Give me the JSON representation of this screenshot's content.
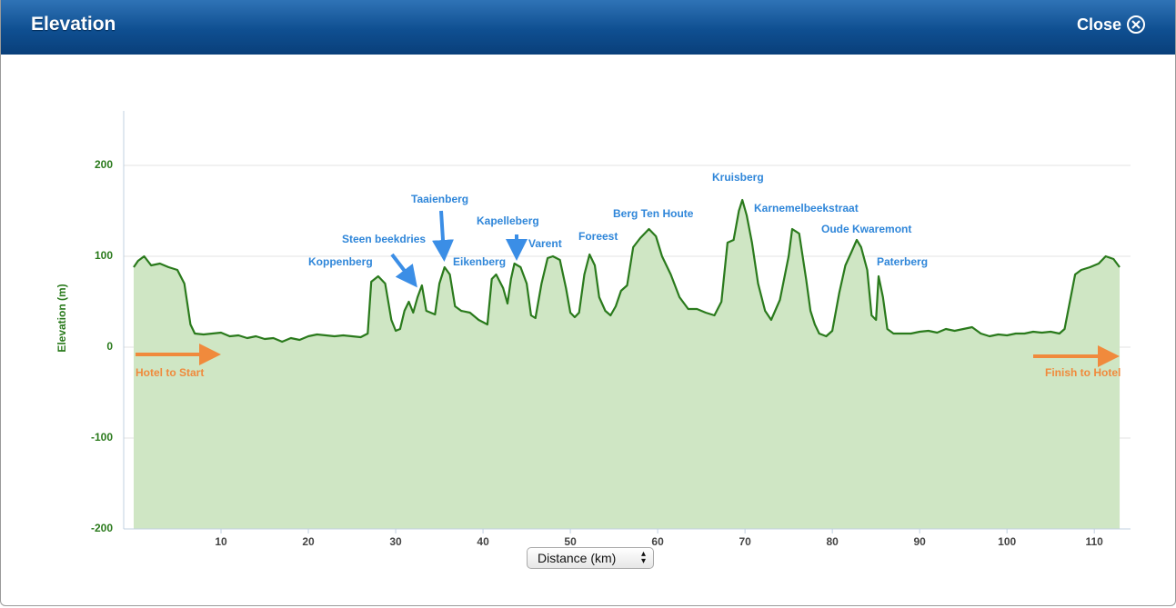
{
  "header": {
    "title": "Elevation",
    "close": "Close"
  },
  "chart_data": {
    "type": "area",
    "ylabel": "Elevation (m)",
    "xlabel": "Distance (km)",
    "color": "#2a7a1c",
    "fill": "#cfe6c4",
    "grid": true,
    "xlim": [
      0,
      113
    ],
    "ylim": [
      -200,
      260
    ],
    "xticks": [
      10,
      20,
      30,
      40,
      50,
      60,
      70,
      80,
      90,
      100,
      110
    ],
    "yticks": [
      -200,
      -100,
      0,
      100,
      200
    ],
    "x": [
      0,
      0.5,
      1.2,
      2,
      3,
      4,
      5,
      5.8,
      6.5,
      7,
      8,
      9,
      10,
      11,
      12,
      13,
      14,
      15,
      16,
      17,
      18,
      19,
      20,
      21,
      22,
      23,
      24,
      25,
      26,
      26.8,
      27.2,
      28,
      28.8,
      29.5,
      30,
      30.5,
      31,
      31.5,
      32,
      32.5,
      33,
      33.5,
      34,
      34.5,
      35,
      35.6,
      36.2,
      36.8,
      37.5,
      38.5,
      39.5,
      40.5,
      41,
      41.5,
      42.3,
      42.8,
      43.2,
      43.6,
      44.3,
      45,
      45.5,
      46,
      46.7,
      47.4,
      48,
      48.8,
      49.5,
      50,
      50.5,
      51,
      51.6,
      52.2,
      52.8,
      53.3,
      54,
      54.6,
      55.2,
      55.8,
      56.5,
      57.2,
      58,
      59,
      59.8,
      60.5,
      61.5,
      62.5,
      63.5,
      64.5,
      65.5,
      66.5,
      67.3,
      68,
      68.7,
      69.3,
      69.7,
      70.2,
      70.8,
      71.5,
      72.3,
      73,
      74,
      75,
      75.4,
      76.2,
      77,
      77.5,
      78,
      78.5,
      79.3,
      80,
      80.8,
      81.5,
      82.2,
      82.8,
      83.3,
      84,
      84.5,
      85,
      85.3,
      85.8,
      86.3,
      87,
      88,
      89,
      90,
      91,
      92,
      93,
      94,
      95,
      96,
      97,
      98,
      99,
      100,
      101,
      102,
      103,
      104,
      105,
      106,
      106.6,
      107.2,
      107.8,
      108.5,
      109.5,
      110.5,
      111.3,
      112.2,
      112.9
    ],
    "values": [
      88,
      95,
      100,
      90,
      92,
      88,
      85,
      70,
      25,
      15,
      14,
      15,
      16,
      12,
      13,
      10,
      12,
      9,
      10,
      6,
      10,
      8,
      12,
      14,
      13,
      12,
      13,
      12,
      11,
      15,
      72,
      78,
      70,
      30,
      18,
      20,
      40,
      50,
      38,
      55,
      68,
      40,
      38,
      36,
      70,
      88,
      80,
      45,
      40,
      38,
      30,
      25,
      75,
      80,
      65,
      48,
      75,
      92,
      88,
      70,
      35,
      32,
      70,
      98,
      100,
      96,
      65,
      38,
      33,
      38,
      80,
      102,
      90,
      55,
      40,
      35,
      45,
      62,
      68,
      110,
      120,
      130,
      122,
      100,
      80,
      55,
      42,
      42,
      38,
      35,
      50,
      115,
      118,
      150,
      162,
      145,
      115,
      70,
      40,
      30,
      52,
      100,
      130,
      125,
      75,
      40,
      25,
      15,
      12,
      18,
      60,
      90,
      105,
      118,
      110,
      85,
      35,
      30,
      78,
      55,
      20,
      15,
      15,
      15,
      17,
      18,
      16,
      20,
      18,
      20,
      22,
      15,
      12,
      14,
      13,
      15,
      15,
      17,
      16,
      17,
      15,
      20,
      50,
      80,
      85,
      88,
      92,
      100,
      97,
      88
    ],
    "annotations": [
      "Koppenberg",
      "Steen beekdries",
      "Taaienberg",
      "Eikenberg",
      "Kapelleberg",
      "Varent",
      "Foreest",
      "Berg Ten Houte",
      "Kruisberg",
      "Karnemelbeekstraat",
      "Oude Kwaremont",
      "Paterberg",
      "Hotel to Start",
      "Finish to Hotel"
    ]
  }
}
